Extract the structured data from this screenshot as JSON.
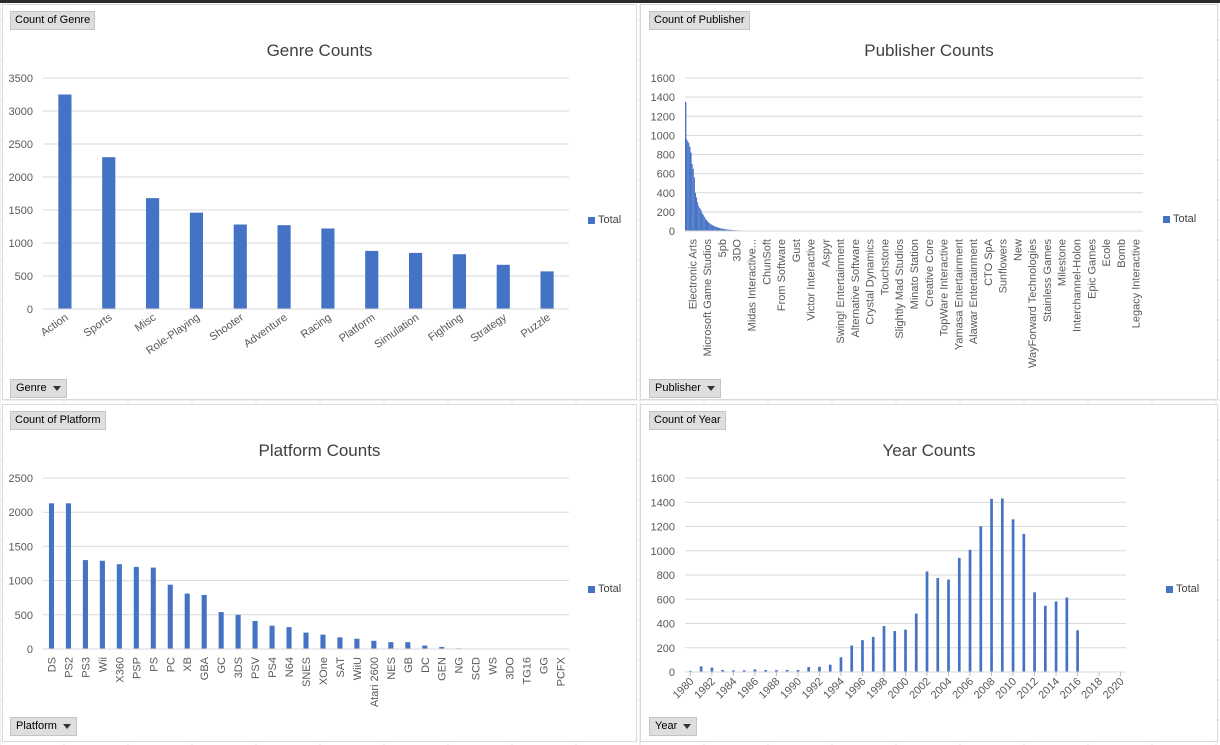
{
  "colors": {
    "bar": "#4472c4",
    "grid": "#d9d9d9",
    "axis_text": "#595959"
  },
  "charts": {
    "genre": {
      "field_label": "Count of Genre",
      "axis_button": "Genre",
      "title": "Genre Counts",
      "legend": "Total",
      "y_ticks": [
        "0",
        "500",
        "1000",
        "1500",
        "2000",
        "2500",
        "3000",
        "3500"
      ]
    },
    "publisher": {
      "field_label": "Count of Publisher",
      "axis_button": "Publisher",
      "title": "Publisher Counts",
      "legend": "Total",
      "y_ticks": [
        "0",
        "200",
        "400",
        "600",
        "800",
        "1000",
        "1200",
        "1400",
        "1600"
      ]
    },
    "platform": {
      "field_label": "Count of Platform",
      "axis_button": "Platform",
      "title": "Platform Counts",
      "legend": "Total",
      "y_ticks": [
        "0",
        "500",
        "1000",
        "1500",
        "2000",
        "2500"
      ]
    },
    "year": {
      "field_label": "Count of Year",
      "axis_button": "Year",
      "title": "Year Counts",
      "legend": "Total",
      "y_ticks": [
        "0",
        "200",
        "400",
        "600",
        "800",
        "1000",
        "1200",
        "1400",
        "1600"
      ]
    }
  },
  "chart_data": [
    {
      "type": "bar",
      "title": "Genre Counts",
      "categories": [
        "Action",
        "Sports",
        "Misc",
        "Role-Playing",
        "Shooter",
        "Adventure",
        "Racing",
        "Platform",
        "Simulation",
        "Fighting",
        "Strategy",
        "Puzzle"
      ],
      "series": [
        {
          "name": "Total",
          "values": [
            3250,
            2300,
            1680,
            1460,
            1280,
            1270,
            1220,
            880,
            850,
            830,
            670,
            570
          ]
        }
      ],
      "ylim": [
        0,
        3500
      ],
      "grid": true,
      "legend_position": "right"
    },
    {
      "type": "bar",
      "title": "Publisher Counts",
      "categories": [
        "Electronic Arts",
        "Microsoft Game Studios",
        "5pb",
        "3DO",
        "Midas Interactive...",
        "ChunSoft",
        "From Software",
        "Gust",
        "Victor Interactive",
        "Aspyr",
        "Swing! Entertainment",
        "Alternative Software",
        "Crystal Dynamics",
        "Touchstone",
        "Slightly Mad Studios",
        "Minato Station",
        "Creative Core",
        "TopWare Interactive",
        "Yamasa Entertainment",
        "Alawar Entertainment",
        "CTO SpA",
        "Sunflowers",
        "New",
        "WayForward Technologies",
        "Stainless Games",
        "Milestone",
        "Interchannel-Holon",
        "Epic Games",
        "Ecole",
        "Bomb",
        "Legacy Interactive"
      ],
      "series": [
        {
          "name": "Total",
          "values": [
            1350,
            200,
            30,
            15,
            8,
            5,
            4,
            3,
            2,
            2,
            1,
            1,
            1,
            1,
            1,
            1,
            1,
            1,
            1,
            1,
            1,
            1,
            1,
            1,
            1,
            1,
            1,
            1,
            1,
            1,
            1
          ]
        }
      ],
      "ylim": [
        0,
        1600
      ],
      "grid": true,
      "legend_position": "right"
    },
    {
      "type": "bar",
      "title": "Platform Counts",
      "categories": [
        "DS",
        "PS2",
        "PS3",
        "Wii",
        "X360",
        "PSP",
        "PS",
        "PC",
        "XB",
        "GBA",
        "GC",
        "3DS",
        "PSV",
        "PS4",
        "N64",
        "SNES",
        "XOne",
        "SAT",
        "WiiU",
        "Atari 2600",
        "NES",
        "GB",
        "DC",
        "GEN",
        "NG",
        "SCD",
        "WS",
        "3DO",
        "TG16",
        "GG",
        "PCFX"
      ],
      "series": [
        {
          "name": "Total",
          "values": [
            2130,
            2130,
            1300,
            1290,
            1240,
            1200,
            1190,
            940,
            810,
            790,
            540,
            500,
            410,
            340,
            320,
            240,
            210,
            170,
            150,
            120,
            100,
            100,
            50,
            30,
            10,
            5,
            5,
            3,
            2,
            1,
            1
          ]
        }
      ],
      "ylim": [
        0,
        2500
      ],
      "grid": true,
      "legend_position": "right"
    },
    {
      "type": "bar",
      "title": "Year Counts",
      "categories": [
        "1980",
        "1981",
        "1982",
        "1983",
        "1984",
        "1985",
        "1986",
        "1987",
        "1988",
        "1989",
        "1990",
        "1991",
        "1992",
        "1993",
        "1994",
        "1995",
        "1996",
        "1997",
        "1998",
        "1999",
        "2000",
        "2001",
        "2002",
        "2003",
        "2004",
        "2005",
        "2006",
        "2007",
        "2008",
        "2009",
        "2010",
        "2011",
        "2012",
        "2013",
        "2014",
        "2015",
        "2016",
        "2017",
        "2018",
        "2019",
        "2020"
      ],
      "tick_labels": [
        "1980",
        "1982",
        "1984",
        "1986",
        "1988",
        "1990",
        "1992",
        "1994",
        "1996",
        "1998",
        "2000",
        "2002",
        "2004",
        "2006",
        "2008",
        "2010",
        "2012",
        "2014",
        "2016",
        "2018",
        "2020"
      ],
      "series": [
        {
          "name": "Total",
          "values": [
            9,
            46,
            36,
            17,
            14,
            14,
            21,
            16,
            15,
            17,
            16,
            41,
            43,
            60,
            121,
            219,
            263,
            289,
            379,
            338,
            349,
            482,
            829,
            775,
            763,
            941,
            1008,
            1202,
            1428,
            1431,
            1259,
            1139,
            657,
            546,
            582,
            614,
            344,
            3,
            1,
            0,
            1
          ]
        }
      ],
      "ylim": [
        0,
        1600
      ],
      "grid": true,
      "legend_position": "right"
    }
  ]
}
